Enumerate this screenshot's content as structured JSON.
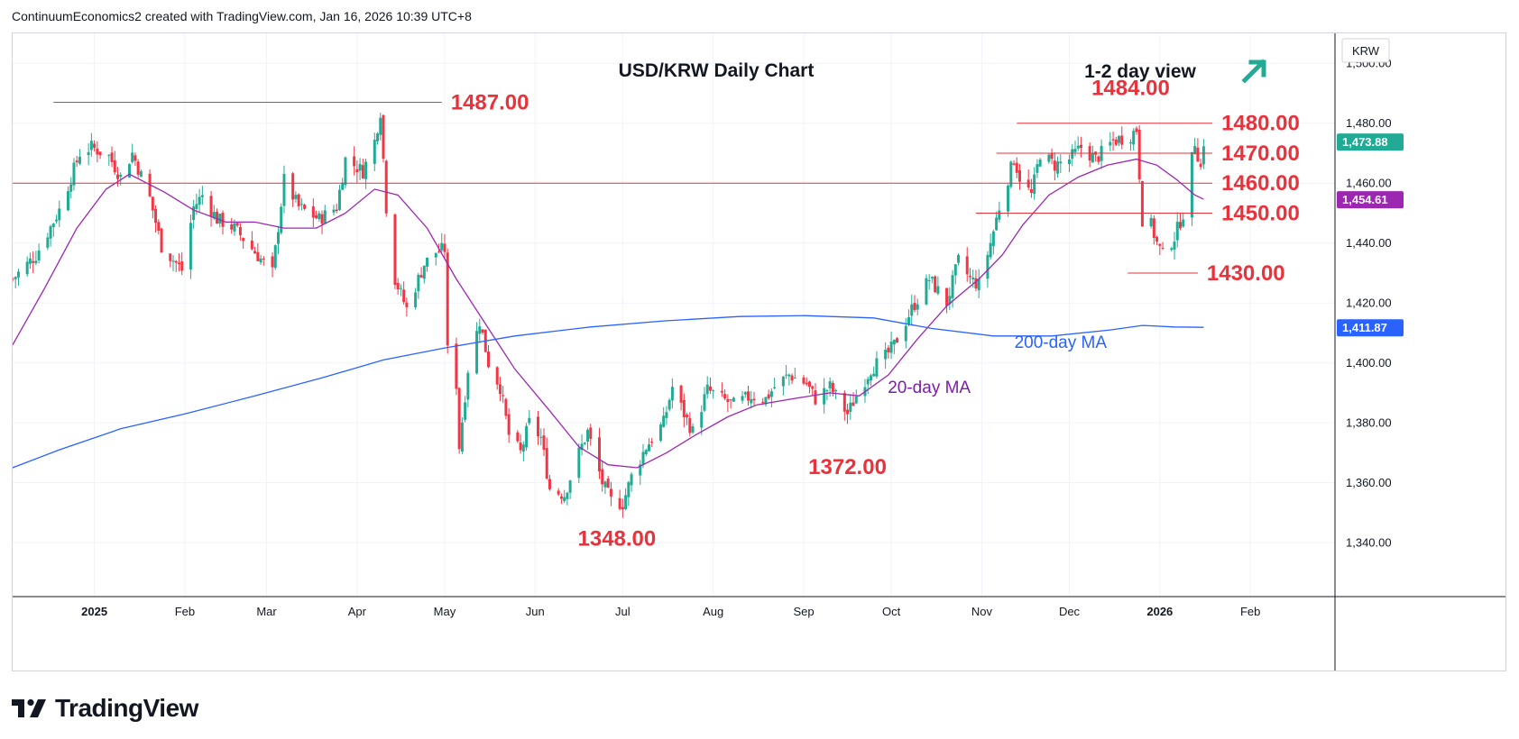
{
  "header": {
    "credit": "ContinuumEconomics2 created with TradingView.com, Jan 16, 2026 10:39 UTC+8"
  },
  "footer": {
    "brand": "TradingView",
    "logo_icon": "tradingview-logo-icon"
  },
  "colors": {
    "up": "#22ab94",
    "down": "#f23645",
    "level": "#e8323c",
    "ma20": "#9c27b0",
    "ma200": "#2962ff",
    "grid": "#f0f3fa",
    "arrow": "#22ab94"
  },
  "chart_data": {
    "type": "candlestick",
    "title": "USD/KRW Daily Chart",
    "subtitle": "1-2 day view",
    "view_icon": "up-right-arrow-icon",
    "currency": "KRW",
    "ylim": [
      1322,
      1510
    ],
    "yticks": [
      1340,
      1360,
      1380,
      1400,
      1420,
      1440,
      1460,
      1480,
      1500
    ],
    "ytick_labels": [
      "1,340.00",
      "1,360.00",
      "1,380.00",
      "1,400.00",
      "1,420.00",
      "1,440.00",
      "1,460.00",
      "1,480.00",
      "1,500.00"
    ],
    "xlim": [
      "2024-12-04",
      "2026-03-02"
    ],
    "xticks": [
      {
        "date": "2025-01-01",
        "label": "2025",
        "bold": true
      },
      {
        "date": "2025-02-01",
        "label": "Feb"
      },
      {
        "date": "2025-03-01",
        "label": "Mar"
      },
      {
        "date": "2025-04-01",
        "label": "Apr"
      },
      {
        "date": "2025-05-01",
        "label": "May"
      },
      {
        "date": "2025-06-01",
        "label": "Jun"
      },
      {
        "date": "2025-07-01",
        "label": "Jul"
      },
      {
        "date": "2025-08-01",
        "label": "Aug"
      },
      {
        "date": "2025-09-01",
        "label": "Sep"
      },
      {
        "date": "2025-10-01",
        "label": "Oct"
      },
      {
        "date": "2025-11-01",
        "label": "Nov"
      },
      {
        "date": "2025-12-01",
        "label": "Dec"
      },
      {
        "date": "2026-01-01",
        "label": "2026",
        "bold": true
      },
      {
        "date": "2026-02-01",
        "label": "Feb"
      }
    ],
    "price_path": [
      [
        "2024-12-04",
        1428
      ],
      [
        "2024-12-12",
        1436
      ],
      [
        "2024-12-20",
        1451
      ],
      [
        "2024-12-27",
        1470
      ],
      [
        "2024-12-31",
        1472
      ],
      [
        "2025-01-06",
        1469
      ],
      [
        "2025-01-10",
        1462
      ],
      [
        "2025-01-14",
        1470
      ],
      [
        "2025-01-20",
        1455
      ],
      [
        "2025-01-24",
        1439
      ],
      [
        "2025-01-31",
        1431
      ],
      [
        "2025-02-04",
        1452
      ],
      [
        "2025-02-07",
        1456
      ],
      [
        "2025-02-12",
        1448
      ],
      [
        "2025-02-18",
        1445
      ],
      [
        "2025-02-25",
        1437
      ],
      [
        "2025-03-03",
        1430
      ],
      [
        "2025-03-07",
        1461
      ],
      [
        "2025-03-12",
        1452
      ],
      [
        "2025-03-19",
        1448
      ],
      [
        "2025-03-25",
        1452
      ],
      [
        "2025-03-28",
        1468
      ],
      [
        "2025-04-03",
        1464
      ],
      [
        "2025-04-07",
        1474
      ],
      [
        "2025-04-09",
        1484
      ],
      [
        "2025-04-11",
        1452
      ],
      [
        "2025-04-14",
        1428
      ],
      [
        "2025-04-18",
        1418
      ],
      [
        "2025-04-24",
        1433
      ],
      [
        "2025-04-28",
        1437
      ],
      [
        "2025-05-01",
        1438
      ],
      [
        "2025-05-02",
        1404
      ],
      [
        "2025-05-05",
        1393
      ],
      [
        "2025-05-06",
        1372
      ],
      [
        "2025-05-09",
        1398
      ],
      [
        "2025-05-13",
        1414
      ],
      [
        "2025-05-16",
        1400
      ],
      [
        "2025-05-20",
        1392
      ],
      [
        "2025-05-23",
        1376
      ],
      [
        "2025-05-27",
        1370
      ],
      [
        "2025-05-30",
        1380
      ],
      [
        "2025-06-03",
        1375
      ],
      [
        "2025-06-06",
        1358
      ],
      [
        "2025-06-11",
        1356
      ],
      [
        "2025-06-16",
        1370
      ],
      [
        "2025-06-19",
        1377
      ],
      [
        "2025-06-24",
        1360
      ],
      [
        "2025-06-27",
        1354
      ],
      [
        "2025-07-01",
        1353
      ],
      [
        "2025-07-04",
        1362
      ],
      [
        "2025-07-09",
        1372
      ],
      [
        "2025-07-15",
        1380
      ],
      [
        "2025-07-18",
        1392
      ],
      [
        "2025-07-22",
        1383
      ],
      [
        "2025-07-25",
        1377
      ],
      [
        "2025-07-30",
        1391
      ],
      [
        "2025-08-04",
        1388
      ],
      [
        "2025-08-08",
        1386
      ],
      [
        "2025-08-14",
        1389
      ],
      [
        "2025-08-19",
        1388
      ],
      [
        "2025-08-22",
        1392
      ],
      [
        "2025-08-27",
        1396
      ],
      [
        "2025-09-02",
        1393
      ],
      [
        "2025-09-05",
        1388
      ],
      [
        "2025-09-10",
        1392
      ],
      [
        "2025-09-16",
        1383
      ],
      [
        "2025-09-19",
        1389
      ],
      [
        "2025-09-24",
        1398
      ],
      [
        "2025-09-29",
        1402
      ],
      [
        "2025-10-02",
        1406
      ],
      [
        "2025-10-08",
        1418
      ],
      [
        "2025-10-14",
        1428
      ],
      [
        "2025-10-20",
        1420
      ],
      [
        "2025-10-24",
        1434
      ],
      [
        "2025-10-28",
        1428
      ],
      [
        "2025-10-31",
        1426
      ],
      [
        "2025-11-04",
        1440
      ],
      [
        "2025-11-07",
        1452
      ],
      [
        "2025-11-12",
        1468
      ],
      [
        "2025-11-14",
        1462
      ],
      [
        "2025-11-18",
        1456
      ],
      [
        "2025-11-21",
        1470
      ],
      [
        "2025-11-26",
        1466
      ],
      [
        "2025-12-01",
        1468
      ],
      [
        "2025-12-05",
        1472
      ],
      [
        "2025-12-10",
        1468
      ],
      [
        "2025-12-16",
        1474
      ],
      [
        "2025-12-22",
        1476
      ],
      [
        "2025-12-24",
        1478
      ],
      [
        "2025-12-26",
        1448
      ],
      [
        "2025-12-29",
        1446
      ],
      [
        "2025-12-31",
        1440
      ],
      [
        "2026-01-02",
        1436
      ],
      [
        "2026-01-06",
        1442
      ],
      [
        "2026-01-09",
        1450
      ],
      [
        "2026-01-12",
        1468
      ],
      [
        "2026-01-13",
        1474
      ],
      [
        "2026-01-15",
        1465
      ],
      [
        "2026-01-16",
        1473.88
      ]
    ],
    "series": [
      {
        "name": "20-day MA",
        "color": "#9c27b0",
        "points": [
          [
            "2024-12-04",
            1406
          ],
          [
            "2024-12-15",
            1425
          ],
          [
            "2024-12-26",
            1445
          ],
          [
            "2025-01-05",
            1458
          ],
          [
            "2025-01-13",
            1463
          ],
          [
            "2025-01-25",
            1457
          ],
          [
            "2025-02-04",
            1451
          ],
          [
            "2025-02-15",
            1447
          ],
          [
            "2025-02-25",
            1447
          ],
          [
            "2025-03-07",
            1445
          ],
          [
            "2025-03-18",
            1445
          ],
          [
            "2025-03-28",
            1450
          ],
          [
            "2025-04-07",
            1458
          ],
          [
            "2025-04-15",
            1456
          ],
          [
            "2025-04-25",
            1445
          ],
          [
            "2025-05-05",
            1428
          ],
          [
            "2025-05-15",
            1413
          ],
          [
            "2025-05-25",
            1398
          ],
          [
            "2025-06-06",
            1384
          ],
          [
            "2025-06-16",
            1372
          ],
          [
            "2025-06-26",
            1366
          ],
          [
            "2025-07-06",
            1365
          ],
          [
            "2025-07-16",
            1370
          ],
          [
            "2025-07-26",
            1376
          ],
          [
            "2025-08-06",
            1382
          ],
          [
            "2025-08-16",
            1386
          ],
          [
            "2025-08-28",
            1388
          ],
          [
            "2025-09-10",
            1390
          ],
          [
            "2025-09-20",
            1389
          ],
          [
            "2025-09-30",
            1396
          ],
          [
            "2025-10-10",
            1408
          ],
          [
            "2025-10-20",
            1419
          ],
          [
            "2025-10-31",
            1428
          ],
          [
            "2025-11-08",
            1436
          ],
          [
            "2025-11-15",
            1446
          ],
          [
            "2025-11-24",
            1456
          ],
          [
            "2025-12-04",
            1462
          ],
          [
            "2025-12-14",
            1466
          ],
          [
            "2025-12-24",
            1468
          ],
          [
            "2025-12-31",
            1466
          ],
          [
            "2026-01-07",
            1461
          ],
          [
            "2026-01-13",
            1456
          ],
          [
            "2026-01-16",
            1454.61
          ]
        ],
        "value_label": "1,454.61"
      },
      {
        "name": "200-day MA",
        "color": "#2962ff",
        "points": [
          [
            "2024-12-04",
            1365
          ],
          [
            "2024-12-20",
            1371
          ],
          [
            "2025-01-10",
            1378
          ],
          [
            "2025-02-01",
            1383
          ],
          [
            "2025-02-25",
            1389
          ],
          [
            "2025-03-20",
            1395
          ],
          [
            "2025-04-10",
            1401
          ],
          [
            "2025-05-01",
            1405
          ],
          [
            "2025-05-25",
            1409
          ],
          [
            "2025-06-20",
            1412
          ],
          [
            "2025-07-15",
            1414
          ],
          [
            "2025-08-10",
            1415.5
          ],
          [
            "2025-09-01",
            1415.8
          ],
          [
            "2025-09-25",
            1415
          ],
          [
            "2025-10-15",
            1411.5
          ],
          [
            "2025-11-05",
            1409
          ],
          [
            "2025-11-25",
            1409
          ],
          [
            "2025-12-15",
            1411
          ],
          [
            "2025-12-26",
            1412.5
          ],
          [
            "2026-01-06",
            1412
          ],
          [
            "2026-01-16",
            1411.87
          ]
        ],
        "value_label": "1,411.87"
      }
    ],
    "last_price": 1473.88,
    "last_price_label": "1,473.88",
    "levels": [
      {
        "value": 1487,
        "label": "1487.00",
        "start": "2024-12-18",
        "end": "2025-04-30"
      },
      {
        "value": 1480,
        "label": "1480.00",
        "start": "2025-11-13",
        "end": "2026-01-19"
      },
      {
        "value": 1470,
        "label": "1470.00",
        "start": "2025-11-06",
        "end": "2026-01-19"
      },
      {
        "value": 1460,
        "label": "1460.00",
        "start": "2024-12-04",
        "end": "2026-01-19"
      },
      {
        "value": 1450,
        "label": "1450.00",
        "start": "2025-10-30",
        "end": "2026-01-19"
      },
      {
        "value": 1430,
        "label": "1430.00",
        "start": "2025-12-21",
        "end": "2026-01-14"
      }
    ],
    "annotations": [
      {
        "text": "1484.00",
        "date": "2025-12-22",
        "value": 1484
      },
      {
        "text": "1372.00",
        "date": "2025-09-16",
        "value": 1372
      },
      {
        "text": "1348.00",
        "date": "2025-06-29",
        "value": 1348
      },
      {
        "text": "200-day MA",
        "date": "2025-11-28",
        "value": 1405
      },
      {
        "text": "20-day MA",
        "date": "2025-10-14",
        "value": 1390
      }
    ]
  }
}
